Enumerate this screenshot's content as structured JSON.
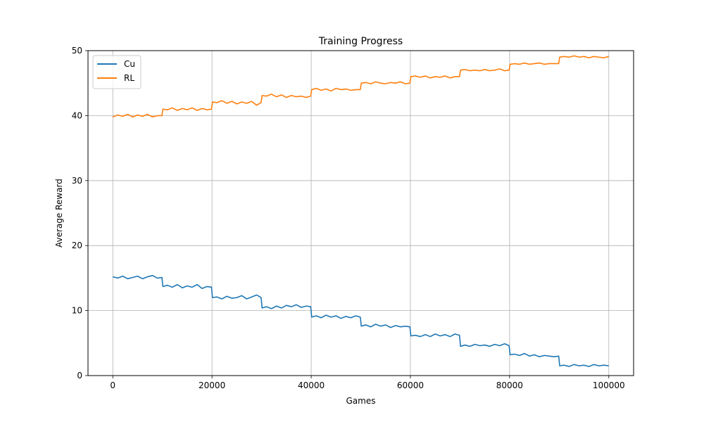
{
  "chart_data": {
    "type": "line",
    "title": "Training Progress",
    "xlabel": "Games",
    "ylabel": "Average Reward",
    "xlim": [
      -5000,
      105000
    ],
    "ylim": [
      0,
      50
    ],
    "xticks": [
      0,
      20000,
      40000,
      60000,
      80000,
      100000
    ],
    "xtick_labels": [
      "0",
      "20000",
      "40000",
      "60000",
      "80000",
      "100000"
    ],
    "yticks": [
      0,
      10,
      20,
      30,
      40,
      50
    ],
    "ytick_labels": [
      "0",
      "10",
      "20",
      "30",
      "40",
      "50"
    ],
    "grid": true,
    "legend_position": "top-left",
    "series": [
      {
        "name": "Cu",
        "color": "#1f77b4",
        "x": [
          0,
          1000,
          2000,
          3000,
          4000,
          5000,
          6000,
          7000,
          8000,
          9000,
          9900,
          10100,
          11000,
          12000,
          13000,
          14000,
          15000,
          16000,
          17000,
          18000,
          19000,
          19900,
          20100,
          21000,
          22000,
          23000,
          24000,
          25000,
          26000,
          27000,
          28000,
          29000,
          29900,
          30100,
          31000,
          32000,
          33000,
          34000,
          35000,
          36000,
          37000,
          38000,
          39000,
          39900,
          40100,
          41000,
          42000,
          43000,
          44000,
          45000,
          46000,
          47000,
          48000,
          49000,
          49900,
          50100,
          51000,
          52000,
          53000,
          54000,
          55000,
          56000,
          57000,
          58000,
          59000,
          59900,
          60100,
          61000,
          62000,
          63000,
          64000,
          65000,
          66000,
          67000,
          68000,
          69000,
          69900,
          70100,
          71000,
          72000,
          73000,
          74000,
          75000,
          76000,
          77000,
          78000,
          79000,
          79900,
          80100,
          81000,
          82000,
          83000,
          84000,
          85000,
          86000,
          87000,
          88000,
          89000,
          89900,
          90100,
          91000,
          92000,
          93000,
          94000,
          95000,
          96000,
          97000,
          98000,
          99000,
          100000
        ],
        "y": [
          15.2,
          15.0,
          15.3,
          14.9,
          15.1,
          15.3,
          14.9,
          15.2,
          15.4,
          15.0,
          15.1,
          13.7,
          13.9,
          13.6,
          14.0,
          13.5,
          13.8,
          13.6,
          14.0,
          13.4,
          13.7,
          13.6,
          12.0,
          12.1,
          11.8,
          12.2,
          11.9,
          12.0,
          12.3,
          11.8,
          12.1,
          12.4,
          12.0,
          10.4,
          10.6,
          10.3,
          10.7,
          10.4,
          10.8,
          10.6,
          10.9,
          10.5,
          10.7,
          10.6,
          9.0,
          9.2,
          8.9,
          9.3,
          9.0,
          9.2,
          8.8,
          9.1,
          8.9,
          9.2,
          9.0,
          7.6,
          7.8,
          7.5,
          7.9,
          7.6,
          7.8,
          7.4,
          7.7,
          7.5,
          7.6,
          7.5,
          6.1,
          6.2,
          6.0,
          6.3,
          6.0,
          6.4,
          6.1,
          6.3,
          6.0,
          6.4,
          6.2,
          4.5,
          4.7,
          4.5,
          4.8,
          4.6,
          4.7,
          4.5,
          4.8,
          4.6,
          4.9,
          4.6,
          3.2,
          3.3,
          3.1,
          3.4,
          3.0,
          3.2,
          2.9,
          3.1,
          3.0,
          2.9,
          3.0,
          1.5,
          1.6,
          1.4,
          1.7,
          1.5,
          1.6,
          1.4,
          1.7,
          1.5,
          1.6,
          1.5
        ]
      },
      {
        "name": "RL",
        "color": "#ff7f0e",
        "x": [
          0,
          1000,
          2000,
          3000,
          4000,
          5000,
          6000,
          7000,
          8000,
          9000,
          9900,
          10100,
          11000,
          12000,
          13000,
          14000,
          15000,
          16000,
          17000,
          18000,
          19000,
          19900,
          20100,
          21000,
          22000,
          23000,
          24000,
          25000,
          26000,
          27000,
          28000,
          29000,
          29900,
          30100,
          31000,
          32000,
          33000,
          34000,
          35000,
          36000,
          37000,
          38000,
          39000,
          39900,
          40100,
          41000,
          42000,
          43000,
          44000,
          45000,
          46000,
          47000,
          48000,
          49000,
          49900,
          50100,
          51000,
          52000,
          53000,
          54000,
          55000,
          56000,
          57000,
          58000,
          59000,
          59900,
          60100,
          61000,
          62000,
          63000,
          64000,
          65000,
          66000,
          67000,
          68000,
          69000,
          69900,
          70100,
          71000,
          72000,
          73000,
          74000,
          75000,
          76000,
          77000,
          78000,
          79000,
          79900,
          80100,
          81000,
          82000,
          83000,
          84000,
          85000,
          86000,
          87000,
          88000,
          89000,
          89900,
          90100,
          91000,
          92000,
          93000,
          94000,
          95000,
          96000,
          97000,
          98000,
          99000,
          100000
        ],
        "y": [
          39.8,
          40.1,
          39.9,
          40.2,
          39.8,
          40.1,
          39.9,
          40.2,
          39.8,
          40.0,
          40.0,
          41.0,
          40.9,
          41.2,
          40.8,
          41.1,
          40.9,
          41.2,
          40.8,
          41.1,
          40.9,
          41.0,
          42.1,
          42.0,
          42.3,
          41.9,
          42.2,
          41.8,
          42.1,
          41.9,
          42.2,
          41.6,
          42.0,
          43.1,
          43.0,
          43.3,
          42.9,
          43.2,
          42.8,
          43.1,
          42.9,
          43.0,
          42.8,
          43.0,
          44.0,
          44.2,
          43.9,
          44.1,
          43.8,
          44.2,
          44.0,
          44.1,
          43.9,
          44.0,
          44.0,
          45.0,
          45.1,
          44.9,
          45.2,
          45.0,
          44.9,
          45.1,
          45.0,
          45.2,
          44.9,
          45.0,
          46.0,
          46.1,
          45.9,
          46.1,
          45.8,
          46.0,
          45.9,
          46.1,
          45.8,
          46.0,
          46.0,
          47.0,
          47.1,
          46.9,
          47.0,
          46.9,
          47.1,
          46.9,
          47.0,
          47.2,
          46.9,
          47.0,
          47.9,
          48.0,
          47.9,
          48.1,
          47.9,
          48.0,
          48.1,
          47.9,
          48.0,
          48.0,
          48.0,
          49.0,
          49.1,
          49.0,
          49.2,
          49.0,
          49.1,
          48.9,
          49.1,
          49.0,
          48.9,
          49.1
        ]
      }
    ]
  }
}
